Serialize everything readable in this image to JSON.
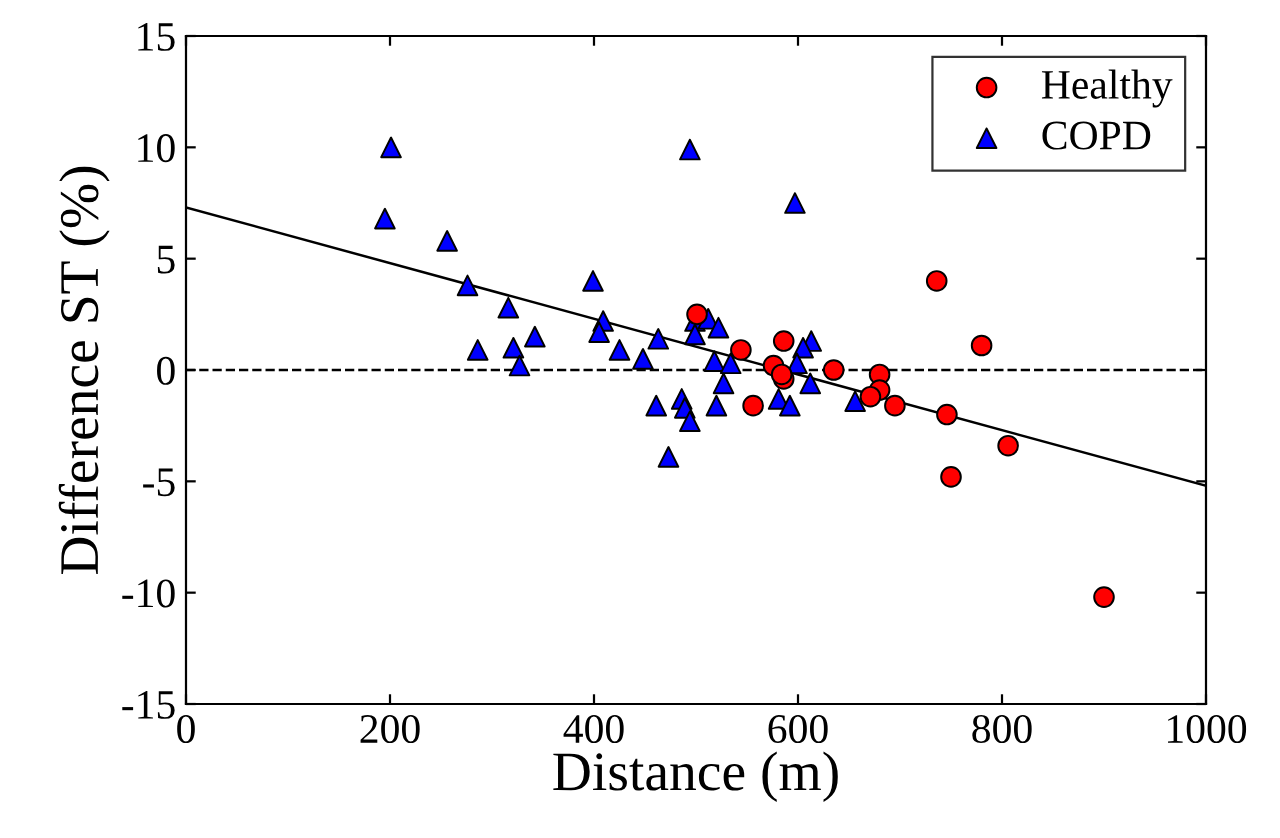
{
  "chart_data": {
    "type": "scatter",
    "xlabel": "Distance (m)",
    "ylabel": "Difference ST (%)",
    "xlim": [
      0,
      1000
    ],
    "xticks": [
      0,
      200,
      400,
      600,
      800,
      1000
    ],
    "ylim": [
      -15,
      15
    ],
    "yticks": [
      -15,
      -10,
      -5,
      0,
      5,
      10,
      15
    ],
    "grid": false,
    "legend": "top right",
    "ref_lines": [
      {
        "axis": "y",
        "value": 0,
        "label": null,
        "line_style": "dashed",
        "color": "#000000"
      }
    ],
    "series": [
      {
        "name": "Healthy",
        "color": "#ff0000",
        "marker": "circle",
        "x": [
          736,
          780,
          900,
          806,
          750,
          746,
          695,
          680,
          680,
          671,
          635,
          586,
          586,
          501,
          544,
          556,
          576,
          584
        ],
        "values": [
          4.0,
          1.1,
          -10.2,
          -3.4,
          -4.8,
          -2.0,
          -1.6,
          -0.2,
          -0.9,
          -1.2,
          0.0,
          1.3,
          -0.4,
          2.5,
          0.9,
          -1.6,
          0.2,
          -0.2
        ]
      },
      {
        "name": "COPD",
        "color": "#0000ff",
        "marker": "triangle",
        "x": [
          201,
          195,
          256,
          276,
          316,
          286,
          321,
          342,
          327,
          399,
          409,
          405,
          425,
          448,
          463,
          494,
          499,
          499,
          512,
          522,
          518,
          534,
          527,
          461,
          486,
          489,
          494,
          520,
          473,
          581,
          592,
          597,
          613,
          605,
          599,
          612,
          656
        ],
        "values": [
          10.0,
          6.8,
          5.8,
          3.8,
          2.8,
          0.9,
          1.0,
          1.5,
          0.2,
          4.0,
          2.2,
          1.7,
          0.9,
          0.5,
          1.4,
          9.9,
          2.2,
          1.6,
          2.3,
          1.9,
          0.4,
          0.3,
          -0.6,
          -1.6,
          -1.3,
          -1.7,
          -2.3,
          -1.6,
          -3.9,
          -1.3,
          -1.6,
          7.5,
          1.3,
          1.0,
          0.3,
          -0.6,
          -1.4
        ]
      },
      {
        "type": "line",
        "color": "#000000",
        "marker": "none",
        "line_style": "solid",
        "x": [
          0,
          1000
        ],
        "values": [
          7.3,
          -5.2
        ]
      }
    ]
  }
}
